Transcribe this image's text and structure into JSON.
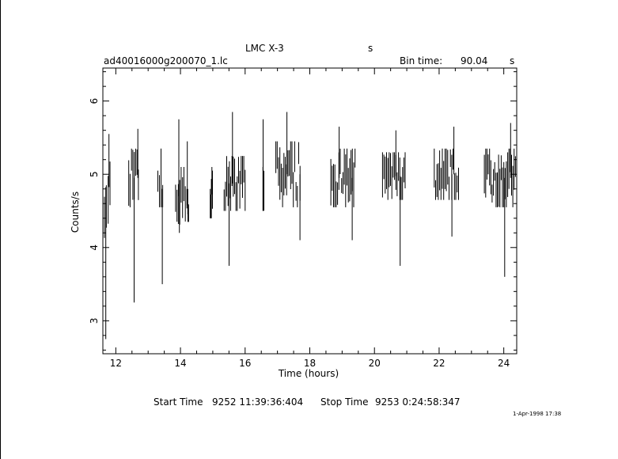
{
  "header": {
    "target": "LMC X-3",
    "units_flag": "s",
    "file_name": "ad40016000g200070_1.lc",
    "bin_time_label": "Bin time:",
    "bin_time_value": "90.04",
    "bin_time_unit": "s"
  },
  "footer": {
    "start_label": "Start Time",
    "start_value": "9252 11:39:36:404",
    "stop_label": "Stop Time",
    "stop_value": "9253  0:24:58:347",
    "plot_date": "1-Apr-1998 17:38"
  },
  "chart_data": {
    "type": "line",
    "xlabel": "Time (hours)",
    "ylabel": "Counts/s",
    "xlim": [
      11.6,
      24.4
    ],
    "ylim": [
      2.55,
      6.45
    ],
    "xticks": [
      12,
      14,
      16,
      18,
      20,
      22,
      24
    ],
    "yticks": [
      3,
      4,
      5,
      6
    ],
    "segments": [
      {
        "start": 11.65,
        "end": 11.82,
        "min": 4.1,
        "max": 5.55,
        "low": 2.75,
        "high": 5.55
      },
      {
        "start": 12.4,
        "end": 12.7,
        "min": 4.55,
        "max": 5.35,
        "low": 3.25,
        "high": 5.62
      },
      {
        "start": 13.3,
        "end": 13.45,
        "min": 4.55,
        "max": 5.05,
        "low": 3.5,
        "high": 5.35
      },
      {
        "start": 13.85,
        "end": 14.15,
        "min": 4.3,
        "max": 5.1,
        "low": 4.2,
        "high": 5.75
      },
      {
        "start": 14.2,
        "end": 14.25,
        "min": 4.35,
        "max": 4.8,
        "low": 4.35,
        "high": 5.45
      },
      {
        "start": 14.92,
        "end": 14.99,
        "min": 4.4,
        "max": 5.05,
        "low": 4.4,
        "high": 5.1
      },
      {
        "start": 15.35,
        "end": 16.0,
        "min": 4.5,
        "max": 5.25,
        "low": 3.75,
        "high": 5.85
      },
      {
        "start": 16.55,
        "end": 16.58,
        "min": 4.5,
        "max": 5.1,
        "low": 4.5,
        "high": 5.75
      },
      {
        "start": 16.95,
        "end": 17.7,
        "min": 4.55,
        "max": 5.45,
        "low": 4.1,
        "high": 5.85
      },
      {
        "start": 18.65,
        "end": 19.4,
        "min": 4.55,
        "max": 5.35,
        "low": 4.1,
        "high": 5.65
      },
      {
        "start": 20.25,
        "end": 20.95,
        "min": 4.65,
        "max": 5.3,
        "low": 3.75,
        "high": 5.6
      },
      {
        "start": 21.85,
        "end": 22.6,
        "min": 4.65,
        "max": 5.35,
        "low": 4.15,
        "high": 5.65
      },
      {
        "start": 23.4,
        "end": 24.4,
        "min": 4.55,
        "max": 5.35,
        "low": 3.6,
        "high": 5.7
      }
    ]
  }
}
